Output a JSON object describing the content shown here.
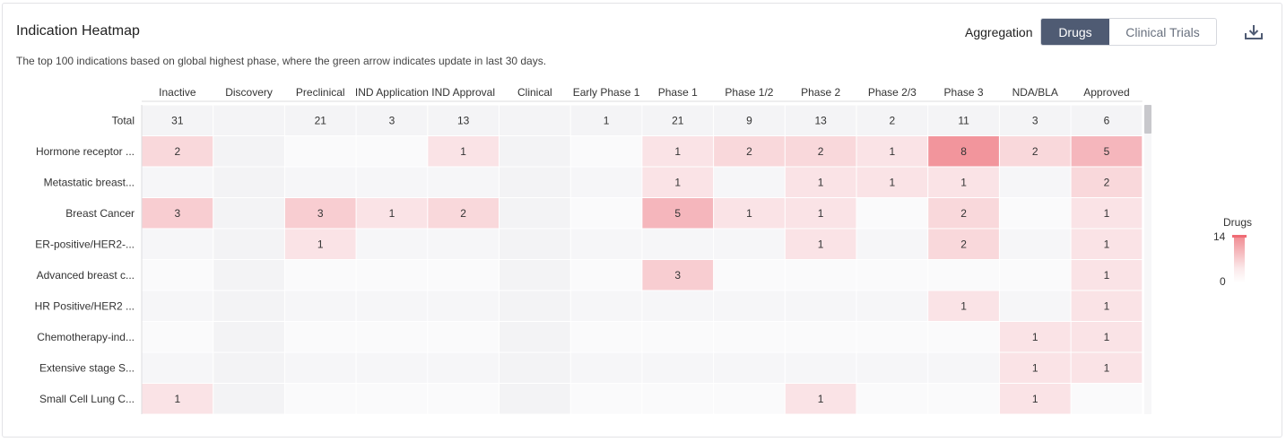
{
  "header": {
    "title": "Indication Heatmap",
    "subtitle": "The top 100 indications based on global highest phase, where the green arrow indicates update in last 30 days.",
    "aggregation_label": "Aggregation",
    "toggle": {
      "active": "Drugs",
      "inactive": "Clinical Trials"
    },
    "download_icon": "download-icon"
  },
  "legend": {
    "title": "Drugs",
    "max": "14",
    "min": "0"
  },
  "colors": {
    "accent": "#4f5b73",
    "heat_high": "#f2959c",
    "heat_low": "#fbeef0"
  },
  "chart_data": {
    "type": "heatmap",
    "columns": [
      "Inactive",
      "Discovery",
      "Preclinical",
      "IND Application",
      "IND Approval",
      "Clinical",
      "Early Phase 1",
      "Phase 1",
      "Phase 1/2",
      "Phase 2",
      "Phase 2/3",
      "Phase 3",
      "NDA/BLA",
      "Approved"
    ],
    "rows": [
      "Total",
      "Hormone receptor ...",
      "Metastatic breast...",
      "Breast Cancer",
      "ER-positive/HER2-...",
      "Advanced breast c...",
      "HR Positive/HER2 ...",
      "Chemotherapy-ind...",
      "Extensive stage S...",
      "Small Cell Lung C..."
    ],
    "values": [
      [
        31,
        null,
        21,
        3,
        13,
        null,
        1,
        21,
        9,
        13,
        2,
        11,
        3,
        6
      ],
      [
        2,
        null,
        null,
        null,
        1,
        null,
        null,
        1,
        2,
        2,
        1,
        8,
        2,
        5
      ],
      [
        null,
        null,
        null,
        null,
        null,
        null,
        null,
        1,
        null,
        1,
        1,
        1,
        null,
        2
      ],
      [
        3,
        null,
        3,
        1,
        2,
        null,
        null,
        5,
        1,
        1,
        null,
        2,
        null,
        1
      ],
      [
        null,
        null,
        1,
        null,
        null,
        null,
        null,
        null,
        null,
        1,
        null,
        2,
        null,
        1
      ],
      [
        null,
        null,
        null,
        null,
        null,
        null,
        null,
        3,
        null,
        null,
        null,
        null,
        null,
        1
      ],
      [
        null,
        null,
        null,
        null,
        null,
        null,
        null,
        null,
        null,
        null,
        null,
        1,
        null,
        1
      ],
      [
        null,
        null,
        null,
        null,
        null,
        null,
        null,
        null,
        null,
        null,
        null,
        null,
        1,
        1
      ],
      [
        null,
        null,
        null,
        null,
        null,
        null,
        null,
        null,
        null,
        null,
        null,
        null,
        1,
        1
      ],
      [
        1,
        null,
        null,
        null,
        null,
        null,
        null,
        null,
        null,
        1,
        null,
        null,
        1,
        null
      ]
    ],
    "scale": {
      "min": 0,
      "max": 14
    }
  }
}
